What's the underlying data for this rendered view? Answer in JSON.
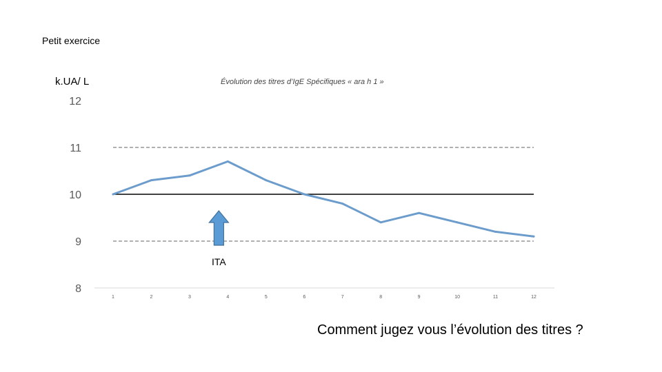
{
  "slide": {
    "heading": "Petit exercice",
    "question": "Comment jugez vous l’évolution des titres ?"
  },
  "chart_data": {
    "type": "line",
    "title": "Évolution des titres d’IgE Spécifiques « ara h 1 »",
    "xlabel": "",
    "ylabel": "k.UA/ L",
    "categories": [
      "1",
      "2",
      "3",
      "4",
      "5",
      "6",
      "7",
      "8",
      "9",
      "10",
      "11",
      "12"
    ],
    "series": [
      {
        "values": [
          10.0,
          10.3,
          10.4,
          10.7,
          10.3,
          10.0,
          9.8,
          9.4,
          9.6,
          9.4,
          9.2,
          9.1
        ],
        "color": "#6b9ccc"
      }
    ],
    "ylim": [
      8,
      12
    ],
    "yticks": [
      "8",
      "9",
      "10",
      "11",
      "12"
    ],
    "reference_lines": [
      {
        "y": 10,
        "style": "solid",
        "color": "#000000"
      },
      {
        "y": 11,
        "style": "dashed",
        "color": "#808080"
      },
      {
        "y": 9,
        "style": "dashed",
        "color": "#808080"
      }
    ],
    "annotation": {
      "label": "ITA",
      "x": "4",
      "icon": "up-arrow-icon",
      "color": "#5b9bd5"
    },
    "grid": false,
    "legend": "none"
  }
}
